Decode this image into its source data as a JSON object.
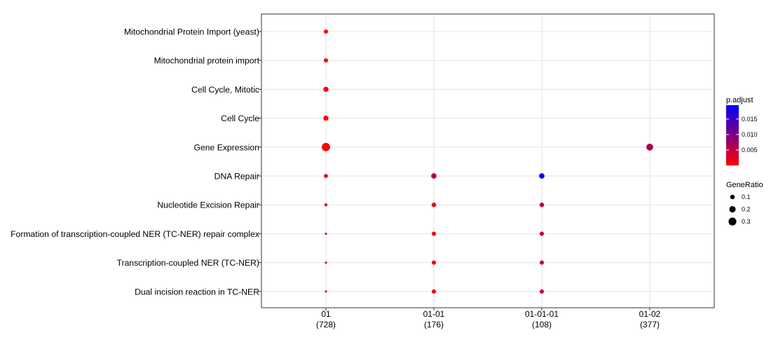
{
  "chart_data": {
    "type": "scatter",
    "title": "",
    "xlabel": "",
    "ylabel": "",
    "categories": [
      {
        "code": "01",
        "count": "(728)"
      },
      {
        "code": "01-01",
        "count": "(176)"
      },
      {
        "code": "01-01-01",
        "count": "(108)"
      },
      {
        "code": "01-02",
        "count": "(377)"
      }
    ],
    "terms": [
      "Mitochondrial Protein Import (yeast)",
      "Mitochondrial protein import",
      "Cell Cycle, Mitotic",
      "Cell Cycle",
      "Gene Expression",
      "DNA Repair",
      "Nucleotide Excision Repair",
      "Formation of transcription-coupled NER (TC-NER) repair complex",
      "Transcription-coupled NER (TC-NER)",
      "Dual incision reaction in TC-NER"
    ],
    "points": [
      {
        "term": "Mitochondrial Protein Import (yeast)",
        "category": "01",
        "gene_ratio": 0.09,
        "p_adjust": 0.0001
      },
      {
        "term": "Mitochondrial protein import",
        "category": "01",
        "gene_ratio": 0.09,
        "p_adjust": 0.0001
      },
      {
        "term": "Cell Cycle, Mitotic",
        "category": "01",
        "gene_ratio": 0.13,
        "p_adjust": 0.0002
      },
      {
        "term": "Cell Cycle",
        "category": "01",
        "gene_ratio": 0.13,
        "p_adjust": 0.0002
      },
      {
        "term": "Gene Expression",
        "category": "01",
        "gene_ratio": 0.34,
        "p_adjust": 0.0001
      },
      {
        "term": "DNA Repair",
        "category": "01",
        "gene_ratio": 0.08,
        "p_adjust": 0.0005
      },
      {
        "term": "Nucleotide Excision Repair",
        "category": "01",
        "gene_ratio": 0.045,
        "p_adjust": 0.0015
      },
      {
        "term": "Formation of transcription-coupled NER (TC-NER) repair complex",
        "category": "01",
        "gene_ratio": 0.025,
        "p_adjust": 0.002
      },
      {
        "term": "Transcription-coupled NER (TC-NER)",
        "category": "01",
        "gene_ratio": 0.025,
        "p_adjust": 0.002
      },
      {
        "term": "Dual incision reaction in TC-NER",
        "category": "01",
        "gene_ratio": 0.025,
        "p_adjust": 0.002
      },
      {
        "term": "DNA Repair",
        "category": "01-01",
        "gene_ratio": 0.14,
        "p_adjust": 0.0055
      },
      {
        "term": "Nucleotide Excision Repair",
        "category": "01-01",
        "gene_ratio": 0.1,
        "p_adjust": 0.0005
      },
      {
        "term": "Formation of transcription-coupled NER (TC-NER) repair complex",
        "category": "01-01",
        "gene_ratio": 0.09,
        "p_adjust": 0.0005
      },
      {
        "term": "Transcription-coupled NER (TC-NER)",
        "category": "01-01",
        "gene_ratio": 0.09,
        "p_adjust": 0.0005
      },
      {
        "term": "Dual incision reaction in TC-NER",
        "category": "01-01",
        "gene_ratio": 0.09,
        "p_adjust": 0.0005
      },
      {
        "term": "DNA Repair",
        "category": "01-01-01",
        "gene_ratio": 0.14,
        "p_adjust": 0.0195
      },
      {
        "term": "Nucleotide Excision Repair",
        "category": "01-01-01",
        "gene_ratio": 0.1,
        "p_adjust": 0.004
      },
      {
        "term": "Formation of transcription-coupled NER (TC-NER) repair complex",
        "category": "01-01-01",
        "gene_ratio": 0.09,
        "p_adjust": 0.004
      },
      {
        "term": "Transcription-coupled NER (TC-NER)",
        "category": "01-01-01",
        "gene_ratio": 0.09,
        "p_adjust": 0.004
      },
      {
        "term": "Dual incision reaction in TC-NER",
        "category": "01-01-01",
        "gene_ratio": 0.09,
        "p_adjust": 0.004
      },
      {
        "term": "Gene Expression",
        "category": "01-02",
        "gene_ratio": 0.23,
        "p_adjust": 0.006
      }
    ],
    "legend": {
      "placement": "right",
      "color": {
        "title": "p.adjust",
        "ticks": [
          "0.005",
          "0.010",
          "0.015"
        ],
        "tick_values": [
          0.005,
          0.01,
          0.015
        ],
        "range": [
          0,
          0.0195
        ],
        "low_color": "#ff0000",
        "high_color": "#0000ff"
      },
      "size": {
        "title": "GeneRatio",
        "ticks": [
          "0.1",
          "0.2",
          "0.3"
        ],
        "tick_values": [
          0.1,
          0.2,
          0.3
        ]
      }
    },
    "grid": true
  }
}
